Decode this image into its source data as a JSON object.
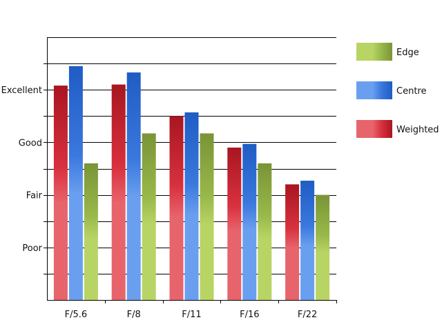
{
  "chart_data": {
    "type": "bar",
    "categories": [
      "F/5.6",
      "F/8",
      "F/11",
      "F/16",
      "F/22"
    ],
    "y_ticks": [
      {
        "label": "Poor",
        "value": 1
      },
      {
        "label": "Fair",
        "value": 2
      },
      {
        "label": "Good",
        "value": 3
      },
      {
        "label": "Excellent",
        "value": 4
      }
    ],
    "ylim": [
      0,
      5
    ],
    "grid": "horizontal, every half step",
    "legend_position": "right",
    "series": [
      {
        "name": "Weighted",
        "colors": {
          "light": "#e8646c",
          "mid": "#d8303e",
          "dark": "#a81620"
        },
        "values": [
          4.08,
          4.1,
          3.5,
          2.9,
          2.2
        ]
      },
      {
        "name": "Centre",
        "colors": {
          "light": "#6a9ff0",
          "mid": "#3a78dd",
          "dark": "#1f5cc4"
        },
        "values": [
          4.45,
          4.33,
          3.57,
          2.97,
          2.27
        ]
      },
      {
        "name": "Edge",
        "colors": {
          "light": "#b8d464",
          "mid": "#98b84a",
          "dark": "#7a9436"
        },
        "values": [
          2.6,
          3.17,
          3.17,
          2.6,
          2.0
        ]
      }
    ],
    "legend_order": [
      "Edge",
      "Centre",
      "Weighted"
    ]
  }
}
